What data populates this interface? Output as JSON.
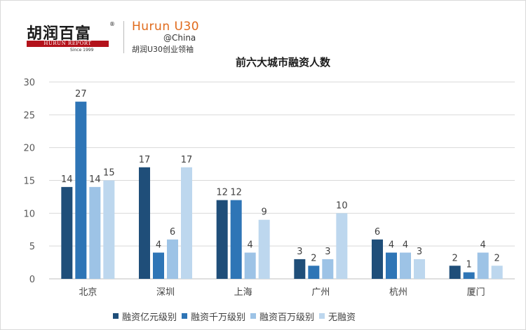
{
  "brand": {
    "logo_cn": "胡润百富",
    "logo_reg": "®",
    "logo_report": "HURUN REPORT",
    "logo_since": "Since 1999",
    "u30_title": "Hurun U30",
    "u30_handle": "@China",
    "u30_sub": "胡润U30创业领袖"
  },
  "chart_data": {
    "type": "bar",
    "title": "前六大城市融资人数",
    "categories": [
      "北京",
      "深圳",
      "上海",
      "广州",
      "杭州",
      "厦门"
    ],
    "series": [
      {
        "name": "融资亿元级别",
        "values": [
          14,
          17,
          12,
          3,
          6,
          2
        ],
        "color": "#1f4e79"
      },
      {
        "name": "融资千万级别",
        "values": [
          27,
          4,
          12,
          2,
          4,
          1
        ],
        "color": "#2e75b6"
      },
      {
        "name": "融资百万级别",
        "values": [
          14,
          6,
          4,
          3,
          4,
          4
        ],
        "color": "#9dc3e6"
      },
      {
        "name": "无融资",
        "values": [
          15,
          17,
          9,
          10,
          3,
          2
        ],
        "color": "#bdd7ee"
      }
    ],
    "ylim": [
      0,
      30
    ],
    "yticks": [
      0,
      5,
      10,
      15,
      20,
      25,
      30
    ],
    "grid": true,
    "legend": "bottom",
    "xlabel": "",
    "ylabel": ""
  }
}
